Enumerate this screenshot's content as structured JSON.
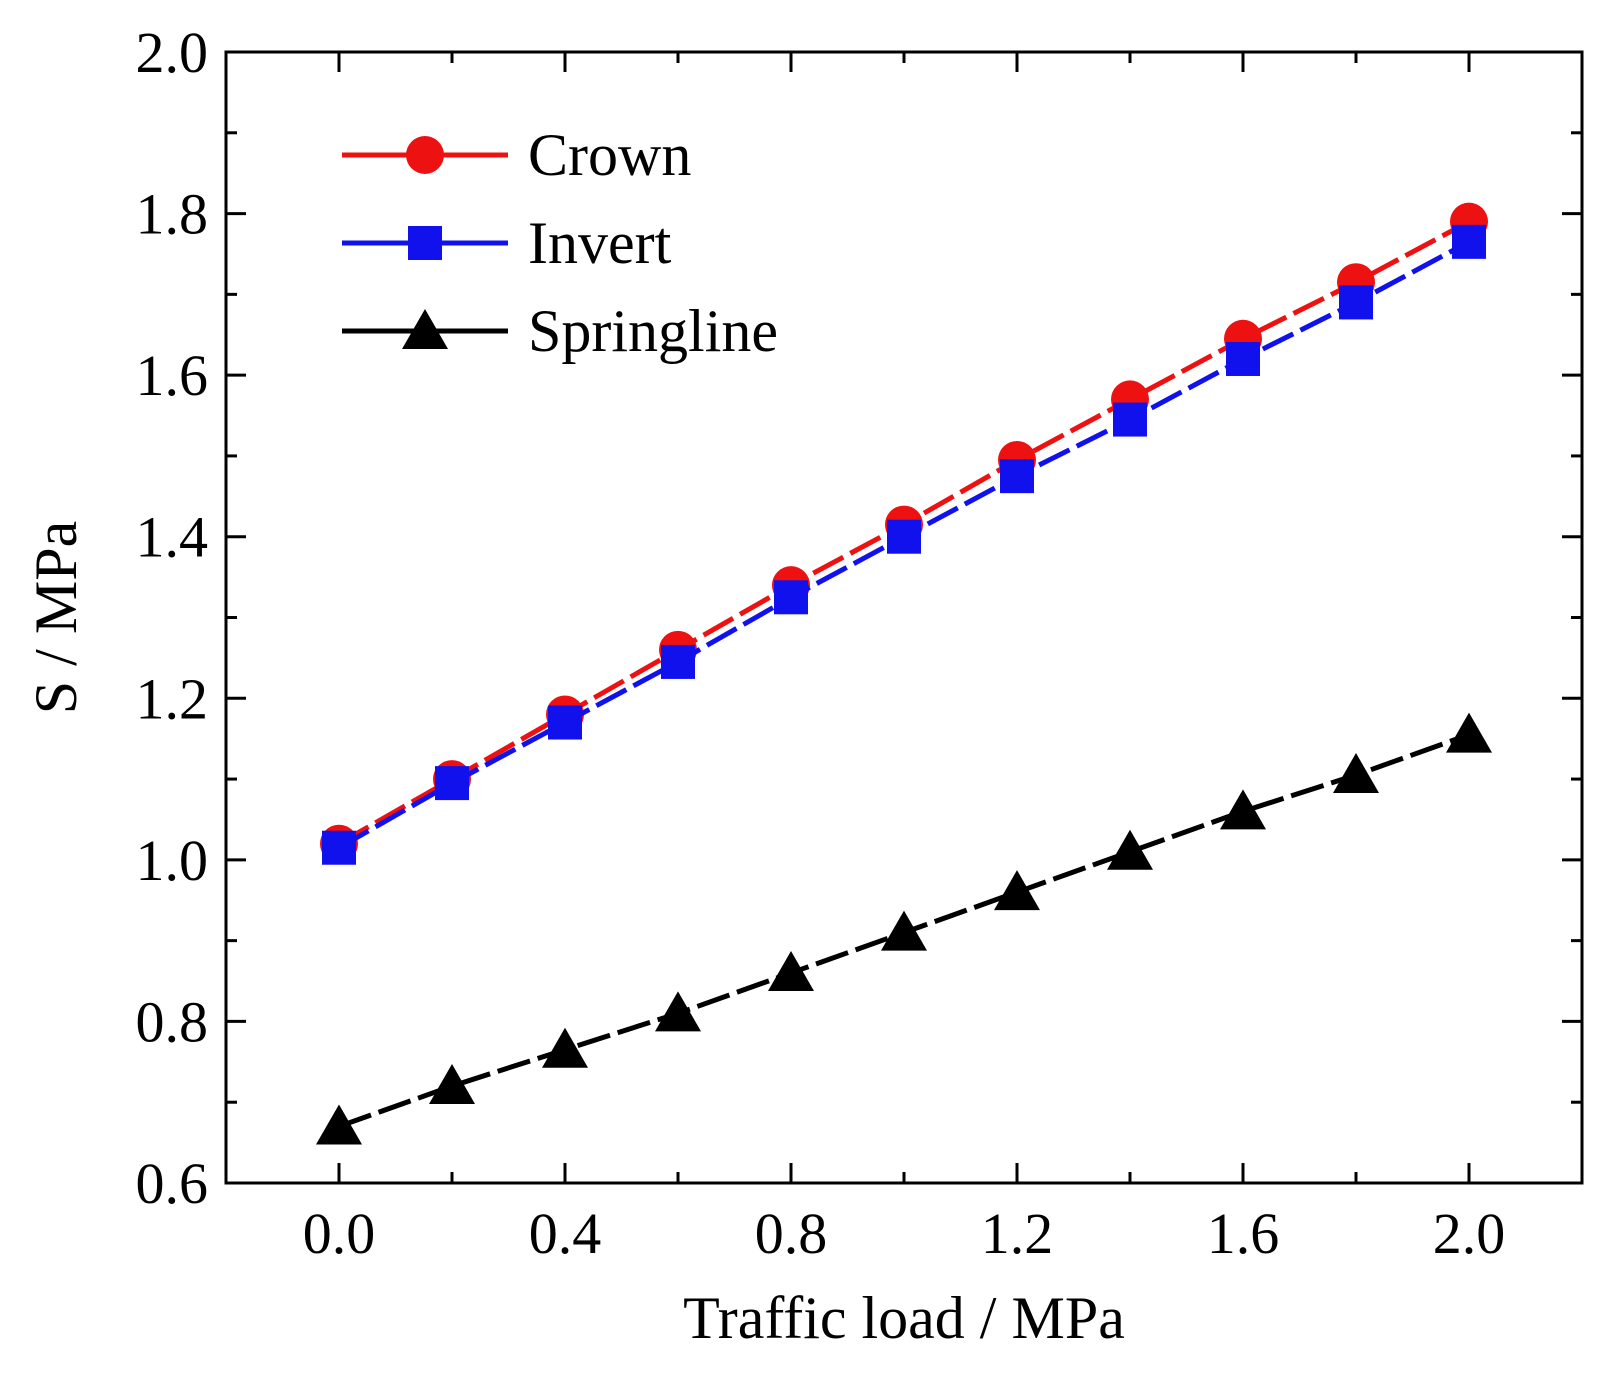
{
  "chart_data": {
    "type": "line",
    "title": "",
    "xlabel": "Traffic load / MPa",
    "ylabel": "S / MPa",
    "xlim": [
      -0.2,
      2.2
    ],
    "ylim": [
      0.6,
      2.0
    ],
    "x_ticks": [
      "0.0",
      "0.4",
      "0.8",
      "1.2",
      "1.6",
      "2.0"
    ],
    "y_ticks": [
      "0.6",
      "0.8",
      "1.0",
      "1.2",
      "1.4",
      "1.6",
      "1.8",
      "2.0"
    ],
    "x": [
      0.0,
      0.2,
      0.4,
      0.6,
      0.8,
      1.0,
      1.2,
      1.4,
      1.6,
      1.8,
      2.0
    ],
    "grid": false,
    "legend_position": "top-left",
    "series": [
      {
        "name": "Crown",
        "color": "#ee1111",
        "marker": "circle",
        "values": [
          1.02,
          1.1,
          1.18,
          1.26,
          1.34,
          1.415,
          1.495,
          1.57,
          1.645,
          1.715,
          1.79
        ]
      },
      {
        "name": "Invert",
        "color": "#1111ee",
        "marker": "square",
        "values": [
          1.015,
          1.095,
          1.17,
          1.245,
          1.325,
          1.4,
          1.475,
          1.545,
          1.62,
          1.69,
          1.765
        ]
      },
      {
        "name": "Springline",
        "color": "#000000",
        "marker": "triangle",
        "values": [
          0.67,
          0.72,
          0.765,
          0.81,
          0.86,
          0.91,
          0.96,
          1.01,
          1.06,
          1.105,
          1.155
        ]
      }
    ]
  }
}
